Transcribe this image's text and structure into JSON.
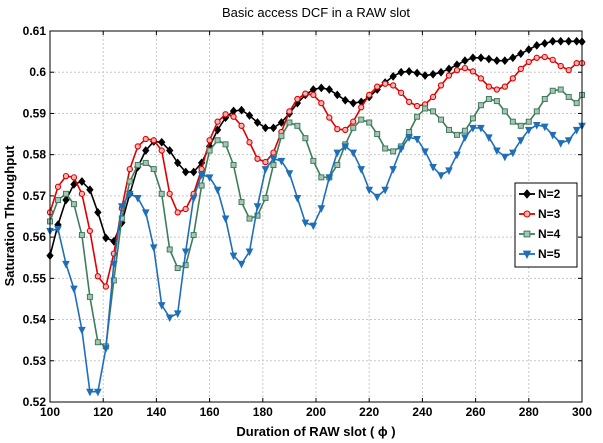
{
  "chart_data": {
    "type": "line",
    "title": "Basic access DCF in a RAW slot",
    "xlabel": "Duration of RAW slot ( ϕ )",
    "ylabel": "Saturation Throughput",
    "xlim": [
      100,
      300
    ],
    "ylim": [
      0.52,
      0.61
    ],
    "xticks": [
      100,
      120,
      140,
      160,
      180,
      200,
      220,
      240,
      260,
      280,
      300
    ],
    "yticks": [
      0.52,
      0.53,
      0.54,
      0.55,
      0.56,
      0.57,
      0.58,
      0.59,
      0.6,
      0.61
    ],
    "ytick_labels": [
      "0.52",
      "0.53",
      "0.54",
      "0.55",
      "0.56",
      "0.57",
      "0.58",
      "0.59",
      "0.6",
      "0.61"
    ],
    "grid": true,
    "legend_position": "right",
    "series": [
      {
        "name": "N=2",
        "color": "#000000",
        "marker": "diamond",
        "points": [
          [
            100,
            0.5555
          ],
          [
            103,
            0.563
          ],
          [
            106,
            0.569
          ],
          [
            109,
            0.5728
          ],
          [
            112,
            0.5735
          ],
          [
            115,
            0.5715
          ],
          [
            118,
            0.566
          ],
          [
            121,
            0.5598
          ],
          [
            124,
            0.559
          ],
          [
            127,
            0.5635
          ],
          [
            130,
            0.5705
          ],
          [
            133,
            0.577
          ],
          [
            136,
            0.581
          ],
          [
            139,
            0.5832
          ],
          [
            142,
            0.583
          ],
          [
            145,
            0.581
          ],
          [
            148,
            0.578
          ],
          [
            151,
            0.5758
          ],
          [
            154,
            0.5758
          ],
          [
            157,
            0.578
          ],
          [
            160,
            0.582
          ],
          [
            163,
            0.586
          ],
          [
            166,
            0.589
          ],
          [
            169,
            0.5906
          ],
          [
            172,
            0.5908
          ],
          [
            175,
            0.5895
          ],
          [
            178,
            0.5878
          ],
          [
            181,
            0.5865
          ],
          [
            184,
            0.5865
          ],
          [
            187,
            0.5878
          ],
          [
            190,
            0.59
          ],
          [
            193,
            0.5925
          ],
          [
            196,
            0.5945
          ],
          [
            199,
            0.5958
          ],
          [
            202,
            0.5962
          ],
          [
            205,
            0.5958
          ],
          [
            208,
            0.5945
          ],
          [
            211,
            0.5932
          ],
          [
            214,
            0.5925
          ],
          [
            217,
            0.5928
          ],
          [
            220,
            0.594
          ],
          [
            223,
            0.5958
          ],
          [
            226,
            0.5975
          ],
          [
            229,
            0.599
          ],
          [
            232,
            0.6
          ],
          [
            235,
            0.6002
          ],
          [
            238,
            0.5998
          ],
          [
            241,
            0.5992
          ],
          [
            244,
            0.5995
          ],
          [
            247,
            0.6
          ],
          [
            250,
            0.6008
          ],
          [
            253,
            0.6018
          ],
          [
            256,
            0.6028
          ],
          [
            259,
            0.6035
          ],
          [
            262,
            0.6035
          ],
          [
            265,
            0.6032
          ],
          [
            268,
            0.6028
          ],
          [
            271,
            0.6028
          ],
          [
            274,
            0.6035
          ],
          [
            277,
            0.6045
          ],
          [
            280,
            0.6055
          ],
          [
            283,
            0.6065
          ],
          [
            286,
            0.607
          ],
          [
            289,
            0.6075
          ],
          [
            292,
            0.6075
          ],
          [
            295,
            0.6075
          ],
          [
            298,
            0.6075
          ],
          [
            300,
            0.6074
          ]
        ]
      },
      {
        "name": "N=3",
        "color": "#e00000",
        "marker": "circle",
        "points": [
          [
            100,
            0.566
          ],
          [
            103,
            0.5722
          ],
          [
            106,
            0.5748
          ],
          [
            109,
            0.5745
          ],
          [
            112,
            0.5705
          ],
          [
            115,
            0.5615
          ],
          [
            118,
            0.5505
          ],
          [
            121,
            0.548
          ],
          [
            124,
            0.556
          ],
          [
            127,
            0.567
          ],
          [
            130,
            0.5765
          ],
          [
            133,
            0.582
          ],
          [
            136,
            0.5838
          ],
          [
            139,
            0.5835
          ],
          [
            142,
            0.581
          ],
          [
            145,
            0.5705
          ],
          [
            148,
            0.566
          ],
          [
            151,
            0.5668
          ],
          [
            154,
            0.5705
          ],
          [
            157,
            0.5765
          ],
          [
            160,
            0.5835
          ],
          [
            163,
            0.588
          ],
          [
            166,
            0.5898
          ],
          [
            169,
            0.5892
          ],
          [
            172,
            0.587
          ],
          [
            175,
            0.583
          ],
          [
            178,
            0.579
          ],
          [
            181,
            0.5782
          ],
          [
            184,
            0.5805
          ],
          [
            187,
            0.5855
          ],
          [
            190,
            0.5905
          ],
          [
            193,
            0.5935
          ],
          [
            196,
            0.5948
          ],
          [
            199,
            0.5945
          ],
          [
            202,
            0.5925
          ],
          [
            205,
            0.589
          ],
          [
            208,
            0.5862
          ],
          [
            211,
            0.586
          ],
          [
            214,
            0.588
          ],
          [
            217,
            0.5915
          ],
          [
            220,
            0.5945
          ],
          [
            223,
            0.5965
          ],
          [
            226,
            0.5972
          ],
          [
            229,
            0.5968
          ],
          [
            232,
            0.595
          ],
          [
            235,
            0.5928
          ],
          [
            238,
            0.5918
          ],
          [
            241,
            0.5922
          ],
          [
            244,
            0.594
          ],
          [
            247,
            0.5968
          ],
          [
            250,
            0.5992
          ],
          [
            253,
            0.6005
          ],
          [
            256,
            0.601
          ],
          [
            259,
            0.6002
          ],
          [
            262,
            0.5985
          ],
          [
            265,
            0.5965
          ],
          [
            268,
            0.5958
          ],
          [
            271,
            0.5965
          ],
          [
            274,
            0.5985
          ],
          [
            277,
            0.6008
          ],
          [
            280,
            0.6025
          ],
          [
            283,
            0.6035
          ],
          [
            286,
            0.6037
          ],
          [
            289,
            0.603
          ],
          [
            292,
            0.6015
          ],
          [
            295,
            0.6005
          ],
          [
            298,
            0.6022
          ],
          [
            300,
            0.6022
          ]
        ]
      },
      {
        "name": "N=4",
        "color": "#3e7d5c",
        "marker": "square",
        "points": [
          [
            100,
            0.5638
          ],
          [
            103,
            0.569
          ],
          [
            106,
            0.5705
          ],
          [
            109,
            0.568
          ],
          [
            112,
            0.5605
          ],
          [
            115,
            0.5455
          ],
          [
            118,
            0.5345
          ],
          [
            121,
            0.5335
          ],
          [
            124,
            0.5495
          ],
          [
            127,
            0.5645
          ],
          [
            130,
            0.5735
          ],
          [
            133,
            0.5775
          ],
          [
            136,
            0.578
          ],
          [
            139,
            0.5765
          ],
          [
            142,
            0.5705
          ],
          [
            145,
            0.557
          ],
          [
            148,
            0.5525
          ],
          [
            151,
            0.5532
          ],
          [
            154,
            0.5605
          ],
          [
            157,
            0.5725
          ],
          [
            160,
            0.581
          ],
          [
            163,
            0.5835
          ],
          [
            166,
            0.5825
          ],
          [
            169,
            0.5775
          ],
          [
            172,
            0.5685
          ],
          [
            175,
            0.5645
          ],
          [
            178,
            0.5652
          ],
          [
            181,
            0.5695
          ],
          [
            184,
            0.5775
          ],
          [
            187,
            0.5845
          ],
          [
            190,
            0.5878
          ],
          [
            193,
            0.587
          ],
          [
            196,
            0.584
          ],
          [
            199,
            0.5785
          ],
          [
            202,
            0.5745
          ],
          [
            205,
            0.5745
          ],
          [
            208,
            0.5775
          ],
          [
            211,
            0.5825
          ],
          [
            214,
            0.5865
          ],
          [
            217,
            0.5885
          ],
          [
            220,
            0.5878
          ],
          [
            223,
            0.585
          ],
          [
            226,
            0.5815
          ],
          [
            229,
            0.5808
          ],
          [
            232,
            0.582
          ],
          [
            235,
            0.5855
          ],
          [
            238,
            0.5892
          ],
          [
            241,
            0.5912
          ],
          [
            244,
            0.5905
          ],
          [
            247,
            0.5885
          ],
          [
            250,
            0.586
          ],
          [
            253,
            0.5848
          ],
          [
            256,
            0.5858
          ],
          [
            259,
            0.5888
          ],
          [
            262,
            0.592
          ],
          [
            265,
            0.5935
          ],
          [
            268,
            0.593
          ],
          [
            271,
            0.5905
          ],
          [
            274,
            0.588
          ],
          [
            277,
            0.587
          ],
          [
            280,
            0.588
          ],
          [
            283,
            0.5905
          ],
          [
            286,
            0.5935
          ],
          [
            289,
            0.5955
          ],
          [
            292,
            0.5958
          ],
          [
            295,
            0.594
          ],
          [
            298,
            0.5925
          ],
          [
            300,
            0.5945
          ]
        ]
      },
      {
        "name": "N=5",
        "color": "#1f6fb8",
        "marker": "triangle-down",
        "points": [
          [
            100,
            0.5615
          ],
          [
            103,
            0.562
          ],
          [
            106,
            0.5535
          ],
          [
            109,
            0.5475
          ],
          [
            112,
            0.5375
          ],
          [
            115,
            0.5225
          ],
          [
            118,
            0.5225
          ],
          [
            121,
            0.533
          ],
          [
            124,
            0.5535
          ],
          [
            127,
            0.5675
          ],
          [
            130,
            0.5705
          ],
          [
            133,
            0.5695
          ],
          [
            136,
            0.566
          ],
          [
            139,
            0.5575
          ],
          [
            142,
            0.5435
          ],
          [
            145,
            0.5405
          ],
          [
            148,
            0.5415
          ],
          [
            151,
            0.5565
          ],
          [
            154,
            0.5695
          ],
          [
            157,
            0.5752
          ],
          [
            160,
            0.5745
          ],
          [
            163,
            0.5715
          ],
          [
            166,
            0.5645
          ],
          [
            169,
            0.5555
          ],
          [
            172,
            0.5535
          ],
          [
            175,
            0.5565
          ],
          [
            178,
            0.5675
          ],
          [
            181,
            0.5765
          ],
          [
            184,
            0.579
          ],
          [
            187,
            0.5785
          ],
          [
            190,
            0.5755
          ],
          [
            193,
            0.5695
          ],
          [
            196,
            0.5635
          ],
          [
            199,
            0.5628
          ],
          [
            202,
            0.567
          ],
          [
            205,
            0.5745
          ],
          [
            208,
            0.5805
          ],
          [
            211,
            0.582
          ],
          [
            214,
            0.5805
          ],
          [
            217,
            0.5765
          ],
          [
            220,
            0.5715
          ],
          [
            223,
            0.5698
          ],
          [
            226,
            0.5715
          ],
          [
            229,
            0.5765
          ],
          [
            232,
            0.5815
          ],
          [
            235,
            0.5842
          ],
          [
            238,
            0.5838
          ],
          [
            241,
            0.5808
          ],
          [
            244,
            0.577
          ],
          [
            247,
            0.575
          ],
          [
            250,
            0.5762
          ],
          [
            253,
            0.58
          ],
          [
            256,
            0.5842
          ],
          [
            259,
            0.5865
          ],
          [
            262,
            0.5865
          ],
          [
            265,
            0.5842
          ],
          [
            268,
            0.581
          ],
          [
            271,
            0.5795
          ],
          [
            274,
            0.5805
          ],
          [
            277,
            0.5835
          ],
          [
            280,
            0.586
          ],
          [
            283,
            0.5872
          ],
          [
            286,
            0.5868
          ],
          [
            289,
            0.5848
          ],
          [
            292,
            0.5828
          ],
          [
            295,
            0.5835
          ],
          [
            298,
            0.586
          ],
          [
            300,
            0.587
          ]
        ]
      }
    ]
  }
}
